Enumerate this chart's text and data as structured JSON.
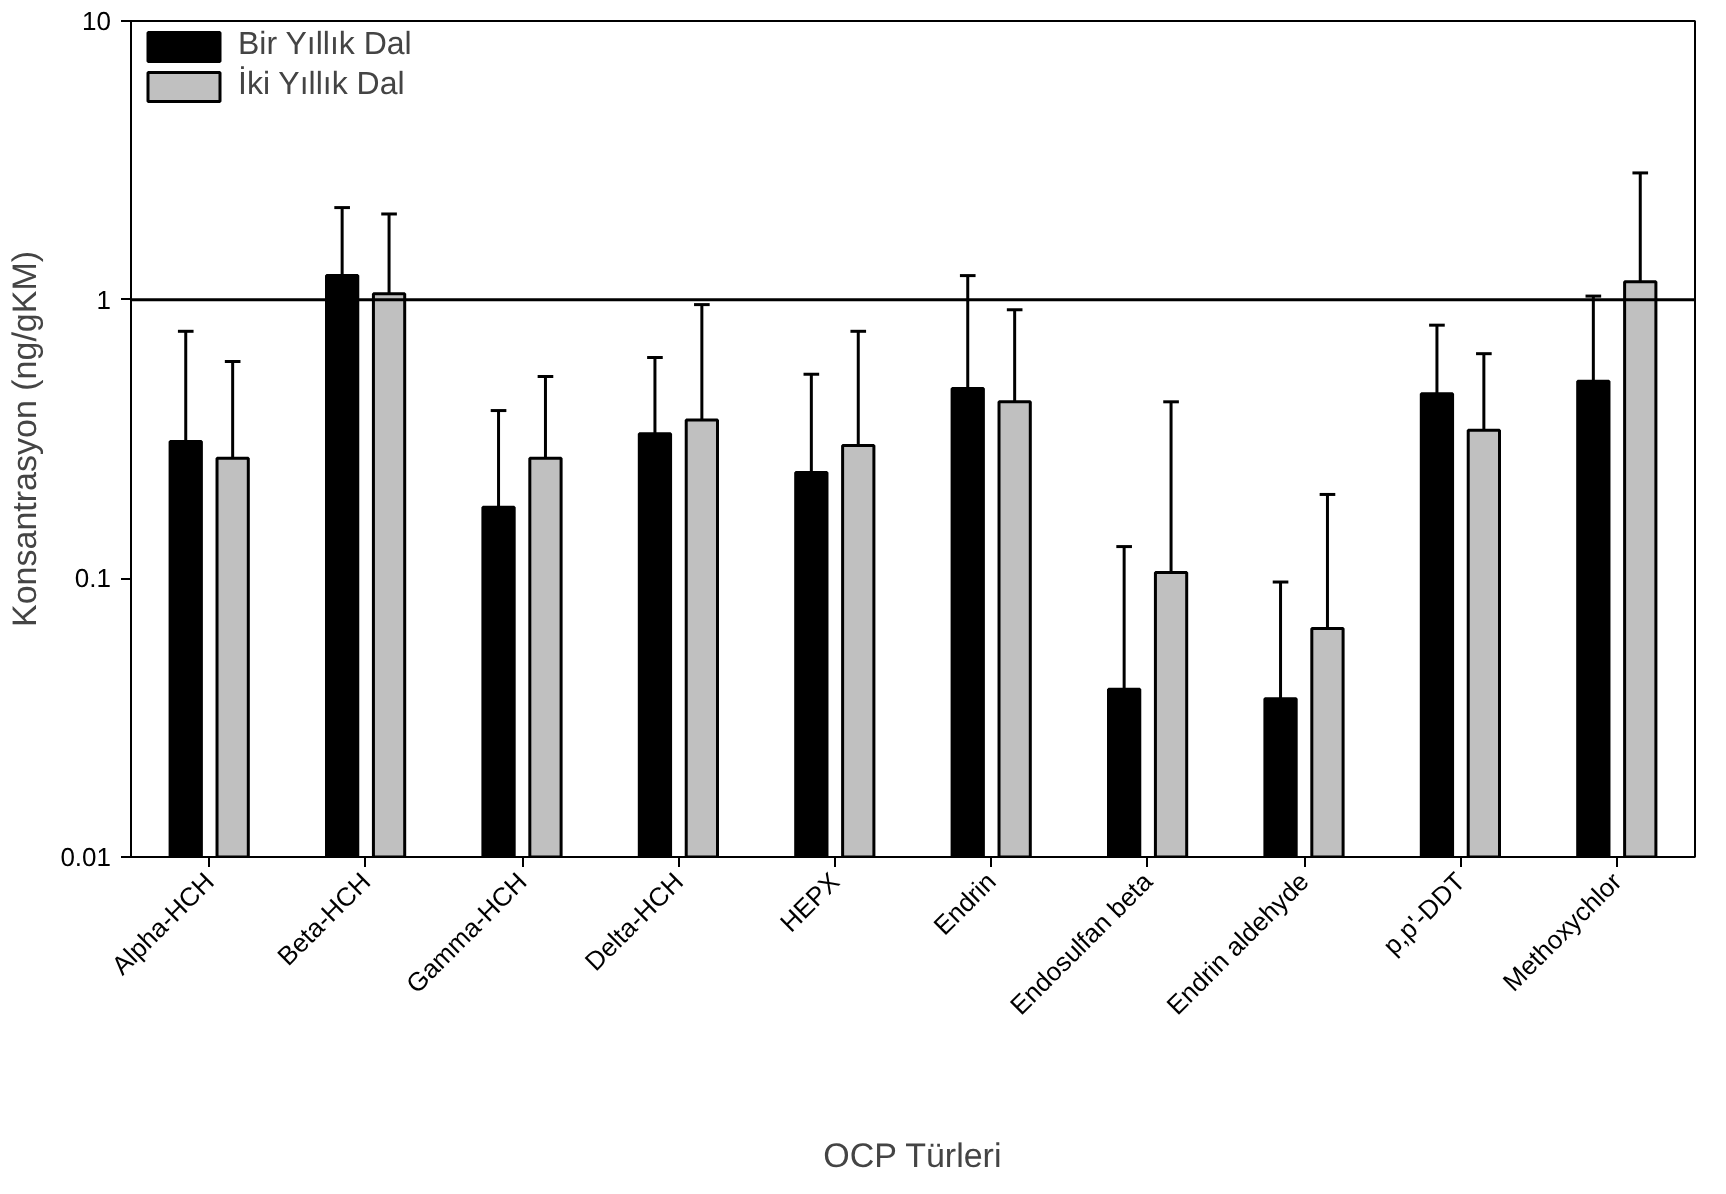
{
  "chart_data": {
    "type": "bar",
    "xlabel": "OCP Türleri",
    "ylabel": "Konsantrasyon (ng/gKM)",
    "categories": [
      "Alpha-HCH",
      "Beta-HCH",
      "Gamma-HCH",
      "Delta-HCH",
      "HEPX",
      "Endrin",
      "Endosulfan beta",
      "Endrin aldehyde",
      "p,p'-DDT",
      "Methoxychlor"
    ],
    "series": [
      {
        "name": "Bir Yıllık Dal",
        "color": "#000000",
        "values": [
          0.31,
          1.22,
          0.18,
          0.33,
          0.24,
          0.48,
          0.04,
          0.037,
          0.46,
          0.51
        ],
        "errors": [
          [
            0.31,
            0.77
          ],
          [
            1.22,
            2.14
          ],
          [
            0.18,
            0.4
          ],
          [
            0.33,
            0.62
          ],
          [
            0.24,
            0.54
          ],
          [
            0.48,
            1.22
          ],
          [
            0.04,
            0.13
          ],
          [
            0.037,
            0.097
          ],
          [
            0.46,
            0.81
          ],
          [
            0.51,
            1.03
          ]
        ]
      },
      {
        "name": "İki Yıllık Dal",
        "color": "#c0c0c0",
        "values": [
          0.27,
          1.05,
          0.27,
          0.37,
          0.3,
          0.43,
          0.105,
          0.066,
          0.34,
          1.16
        ],
        "errors": [
          [
            0.27,
            0.6
          ],
          [
            1.05,
            2.03
          ],
          [
            0.27,
            0.53
          ],
          [
            0.37,
            0.96
          ],
          [
            0.3,
            0.77
          ],
          [
            0.43,
            0.92
          ],
          [
            0.105,
            0.43
          ],
          [
            0.066,
            0.2
          ],
          [
            0.34,
            0.64
          ],
          [
            1.16,
            2.85
          ]
        ]
      }
    ],
    "log": "y",
    "ylim": [
      0.01,
      10
    ],
    "yticks": [
      0.01,
      0.1,
      1,
      10
    ],
    "ref_lines": [
      {
        "axis": "y",
        "value": 1,
        "label": null,
        "color": "#000000",
        "line_style": "solid"
      }
    ],
    "grid": false,
    "legend": "top left"
  }
}
